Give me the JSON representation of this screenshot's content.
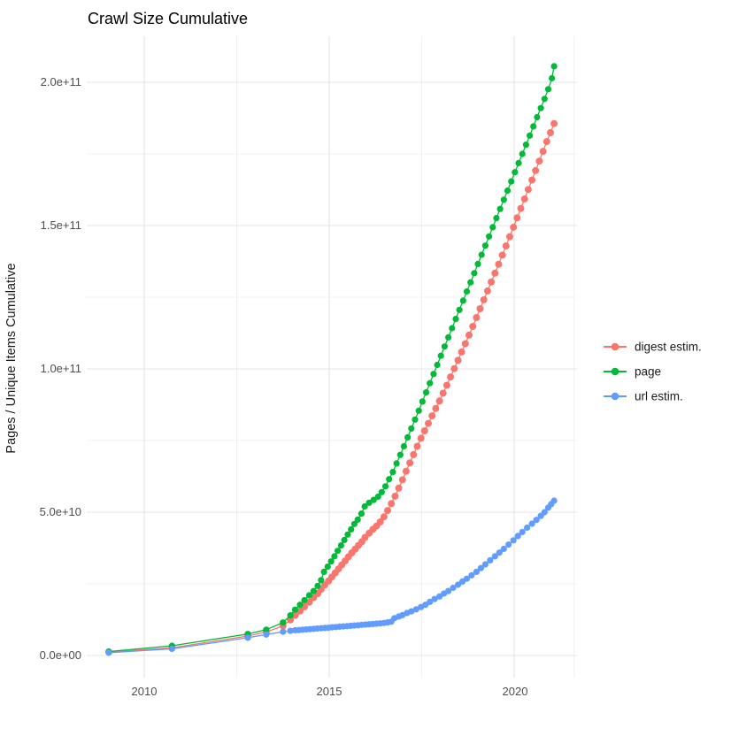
{
  "chart": {
    "title": "Crawl Size Cumulative",
    "y_axis_label": "Pages / Unique Items Cumulative"
  },
  "chart_data": {
    "type": "line",
    "title": "Crawl Size Cumulative",
    "xlabel": "",
    "ylabel": "Pages / Unique Items Cumulative",
    "legend_position": "right",
    "grid": "on",
    "x_range_years": [
      2008.4,
      2021.7
    ],
    "y_range": [
      0,
      216000000000.0
    ],
    "value_unit": "pages, values stored in billions (1e9)",
    "x_ticks": [
      {
        "year": 2010,
        "label": "2010"
      },
      {
        "year": 2015,
        "label": "2015"
      },
      {
        "year": 2020,
        "label": "2020"
      }
    ],
    "x_minor": [
      2012.5,
      2017.5,
      2021.62
    ],
    "y_ticks": [
      {
        "value": 0,
        "label": "0.0e+00"
      },
      {
        "value": 50,
        "label": "5.0e+10"
      },
      {
        "value": 100,
        "label": "1.0e+11"
      },
      {
        "value": 150,
        "label": "1.5e+11"
      },
      {
        "value": 200,
        "label": "2.0e+11"
      }
    ],
    "y_minor": [
      25,
      75,
      125,
      175
    ],
    "series": [
      {
        "name": "digest estim.",
        "color": "#F8766D",
        "points": [
          [
            2009.04,
            1.2
          ],
          [
            2010.75,
            2.7
          ],
          [
            2012.8,
            6.8
          ],
          [
            2013.3,
            8.2
          ],
          [
            2013.75,
            10.3
          ],
          [
            2013.95,
            12.4
          ],
          [
            2014.08,
            14.0
          ],
          [
            2014.21,
            15.5
          ],
          [
            2014.33,
            17.0
          ],
          [
            2014.46,
            18.6
          ],
          [
            2014.58,
            20.2
          ],
          [
            2014.69,
            21.6
          ],
          [
            2014.78,
            23.1
          ],
          [
            2014.88,
            24.6
          ],
          [
            2014.98,
            26.0
          ],
          [
            2015.07,
            27.4
          ],
          [
            2015.16,
            28.8
          ],
          [
            2015.25,
            30.2
          ],
          [
            2015.34,
            31.6
          ],
          [
            2015.43,
            33.0
          ],
          [
            2015.52,
            34.4
          ],
          [
            2015.61,
            35.8
          ],
          [
            2015.7,
            37.1
          ],
          [
            2015.79,
            38.4
          ],
          [
            2015.88,
            39.7
          ],
          [
            2015.97,
            41.2
          ],
          [
            2016.08,
            42.7
          ],
          [
            2016.18,
            44.0
          ],
          [
            2016.28,
            45.2
          ],
          [
            2016.38,
            46.6
          ],
          [
            2016.48,
            48.4
          ],
          [
            2016.58,
            50.6
          ],
          [
            2016.68,
            53.0
          ],
          [
            2016.78,
            55.6
          ],
          [
            2016.88,
            58.4
          ],
          [
            2016.98,
            61.3
          ],
          [
            2017.08,
            64.3
          ],
          [
            2017.18,
            67.2
          ],
          [
            2017.28,
            70.1
          ],
          [
            2017.38,
            73.0
          ],
          [
            2017.48,
            75.8
          ],
          [
            2017.58,
            78.4
          ],
          [
            2017.68,
            81.0
          ],
          [
            2017.78,
            83.6
          ],
          [
            2017.88,
            86.2
          ],
          [
            2017.98,
            88.8
          ],
          [
            2018.08,
            91.5
          ],
          [
            2018.18,
            94.3
          ],
          [
            2018.28,
            97.2
          ],
          [
            2018.38,
            100.1
          ],
          [
            2018.48,
            103.0
          ],
          [
            2018.58,
            105.9
          ],
          [
            2018.68,
            108.8
          ],
          [
            2018.78,
            111.8
          ],
          [
            2018.88,
            114.8
          ],
          [
            2018.98,
            117.9
          ],
          [
            2019.08,
            121.0
          ],
          [
            2019.18,
            124.1
          ],
          [
            2019.28,
            127.2
          ],
          [
            2019.38,
            130.3
          ],
          [
            2019.48,
            133.4
          ],
          [
            2019.58,
            136.5
          ],
          [
            2019.68,
            139.7
          ],
          [
            2019.78,
            142.9
          ],
          [
            2019.88,
            146.1
          ],
          [
            2019.98,
            149.4
          ],
          [
            2020.08,
            152.7
          ],
          [
            2020.18,
            156.0
          ],
          [
            2020.28,
            159.3
          ],
          [
            2020.38,
            162.6
          ],
          [
            2020.48,
            165.9
          ],
          [
            2020.58,
            169.2
          ],
          [
            2020.68,
            172.5
          ],
          [
            2020.78,
            175.9
          ],
          [
            2020.88,
            179.3
          ],
          [
            2020.98,
            182.4
          ],
          [
            2021.08,
            185.6
          ]
        ]
      },
      {
        "name": "page",
        "color": "#00BA38",
        "points": [
          [
            2009.04,
            1.4
          ],
          [
            2010.75,
            3.4
          ],
          [
            2012.8,
            7.5
          ],
          [
            2013.3,
            9.0
          ],
          [
            2013.75,
            11.5
          ],
          [
            2013.95,
            14.0
          ],
          [
            2014.08,
            16.0
          ],
          [
            2014.21,
            17.7
          ],
          [
            2014.33,
            19.3
          ],
          [
            2014.46,
            21.0
          ],
          [
            2014.58,
            22.5
          ],
          [
            2014.69,
            24.3
          ],
          [
            2014.78,
            26.3
          ],
          [
            2014.86,
            29.2
          ],
          [
            2014.96,
            31.0
          ],
          [
            2015.05,
            32.8
          ],
          [
            2015.14,
            34.6
          ],
          [
            2015.23,
            36.5
          ],
          [
            2015.32,
            38.4
          ],
          [
            2015.41,
            40.3
          ],
          [
            2015.5,
            42.2
          ],
          [
            2015.59,
            44.0
          ],
          [
            2015.68,
            45.9
          ],
          [
            2015.77,
            47.4
          ],
          [
            2015.87,
            49.5
          ],
          [
            2015.96,
            52.0
          ],
          [
            2016.08,
            53.3
          ],
          [
            2016.2,
            54.3
          ],
          [
            2016.32,
            55.4
          ],
          [
            2016.42,
            57.0
          ],
          [
            2016.52,
            59.0
          ],
          [
            2016.62,
            61.5
          ],
          [
            2016.72,
            64.0
          ],
          [
            2016.82,
            67.0
          ],
          [
            2016.92,
            70.0
          ],
          [
            2017.02,
            73.0
          ],
          [
            2017.12,
            76.1
          ],
          [
            2017.22,
            79.2
          ],
          [
            2017.32,
            82.3
          ],
          [
            2017.42,
            85.4
          ],
          [
            2017.52,
            88.6
          ],
          [
            2017.62,
            91.8
          ],
          [
            2017.72,
            95.0
          ],
          [
            2017.82,
            98.2
          ],
          [
            2017.92,
            101.4
          ],
          [
            2018.02,
            104.6
          ],
          [
            2018.12,
            107.8
          ],
          [
            2018.22,
            111.0
          ],
          [
            2018.32,
            114.2
          ],
          [
            2018.42,
            117.4
          ],
          [
            2018.52,
            120.6
          ],
          [
            2018.62,
            123.8
          ],
          [
            2018.72,
            127.0
          ],
          [
            2018.82,
            130.2
          ],
          [
            2018.92,
            133.4
          ],
          [
            2019.02,
            136.6
          ],
          [
            2019.12,
            139.8
          ],
          [
            2019.22,
            143.0
          ],
          [
            2019.32,
            146.2
          ],
          [
            2019.42,
            149.4
          ],
          [
            2019.52,
            152.6
          ],
          [
            2019.62,
            155.8
          ],
          [
            2019.72,
            159.0
          ],
          [
            2019.82,
            162.2
          ],
          [
            2019.92,
            165.4
          ],
          [
            2020.02,
            168.6
          ],
          [
            2020.12,
            171.8
          ],
          [
            2020.22,
            175.0
          ],
          [
            2020.32,
            178.2
          ],
          [
            2020.42,
            181.4
          ],
          [
            2020.52,
            184.6
          ],
          [
            2020.62,
            187.8
          ],
          [
            2020.72,
            191.0
          ],
          [
            2020.82,
            194.2
          ],
          [
            2020.92,
            197.6
          ],
          [
            2021.02,
            201.4
          ],
          [
            2021.08,
            205.6
          ]
        ]
      },
      {
        "name": "url estim.",
        "color": "#619CFF",
        "points": [
          [
            2009.04,
            1.0
          ],
          [
            2010.75,
            2.3
          ],
          [
            2012.8,
            6.2
          ],
          [
            2013.3,
            7.3
          ],
          [
            2013.75,
            8.3
          ],
          [
            2013.95,
            8.6
          ],
          [
            2014.08,
            8.8
          ],
          [
            2014.18,
            8.9
          ],
          [
            2014.28,
            9.0
          ],
          [
            2014.38,
            9.1
          ],
          [
            2014.48,
            9.2
          ],
          [
            2014.58,
            9.3
          ],
          [
            2014.68,
            9.4
          ],
          [
            2014.78,
            9.5
          ],
          [
            2014.88,
            9.6
          ],
          [
            2014.98,
            9.7
          ],
          [
            2015.08,
            9.85
          ],
          [
            2015.18,
            9.95
          ],
          [
            2015.28,
            10.05
          ],
          [
            2015.38,
            10.15
          ],
          [
            2015.48,
            10.25
          ],
          [
            2015.58,
            10.35
          ],
          [
            2015.68,
            10.45
          ],
          [
            2015.78,
            10.55
          ],
          [
            2015.88,
            10.7
          ],
          [
            2015.98,
            10.8
          ],
          [
            2016.08,
            10.9
          ],
          [
            2016.18,
            11.0
          ],
          [
            2016.28,
            11.1
          ],
          [
            2016.38,
            11.2
          ],
          [
            2016.48,
            11.35
          ],
          [
            2016.58,
            11.55
          ],
          [
            2016.68,
            11.8
          ],
          [
            2016.76,
            13.0
          ],
          [
            2016.88,
            13.6
          ],
          [
            2016.98,
            14.1
          ],
          [
            2017.1,
            14.8
          ],
          [
            2017.22,
            15.4
          ],
          [
            2017.35,
            16.1
          ],
          [
            2017.48,
            16.9
          ],
          [
            2017.6,
            17.7
          ],
          [
            2017.72,
            18.7
          ],
          [
            2017.85,
            19.7
          ],
          [
            2017.98,
            20.6
          ],
          [
            2018.1,
            21.6
          ],
          [
            2018.22,
            22.5
          ],
          [
            2018.35,
            23.6
          ],
          [
            2018.48,
            24.7
          ],
          [
            2018.6,
            25.8
          ],
          [
            2018.72,
            26.8
          ],
          [
            2018.85,
            28.0
          ],
          [
            2018.98,
            29.2
          ],
          [
            2019.1,
            30.5
          ],
          [
            2019.22,
            31.8
          ],
          [
            2019.35,
            33.2
          ],
          [
            2019.48,
            34.6
          ],
          [
            2019.6,
            35.9
          ],
          [
            2019.72,
            37.2
          ],
          [
            2019.85,
            38.7
          ],
          [
            2019.98,
            40.2
          ],
          [
            2020.1,
            41.7
          ],
          [
            2020.22,
            43.1
          ],
          [
            2020.35,
            44.6
          ],
          [
            2020.48,
            46.0
          ],
          [
            2020.6,
            47.3
          ],
          [
            2020.72,
            48.7
          ],
          [
            2020.82,
            50.0
          ],
          [
            2020.92,
            51.6
          ],
          [
            2021.0,
            52.8
          ],
          [
            2021.08,
            54.0
          ]
        ]
      }
    ]
  }
}
